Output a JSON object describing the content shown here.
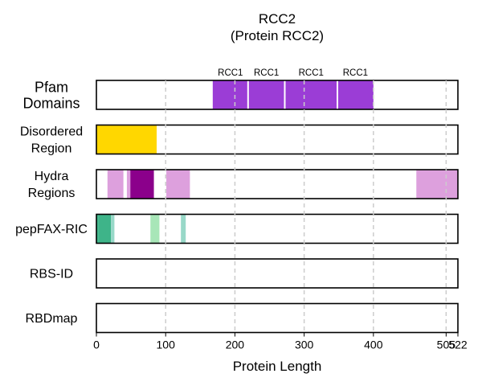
{
  "chart_data": {
    "type": "bar",
    "title": "RCC2",
    "subtitle": "(Protein RCC2)",
    "xlabel": "Protein Length",
    "xlim": [
      0,
      522
    ],
    "x_ticks": [
      0,
      100,
      200,
      300,
      400,
      505,
      522
    ],
    "dashed_lines": [
      100,
      200,
      300,
      400,
      505
    ],
    "tracks": [
      {
        "label_lines": [
          "Pfam",
          "Domains"
        ],
        "segments": [
          {
            "start": 168,
            "end": 219,
            "color": "#9b3dd6",
            "label": "RCC1"
          },
          {
            "start": 219,
            "end": 272,
            "color": "#9b3dd6",
            "label": "RCC1"
          },
          {
            "start": 272,
            "end": 348,
            "color": "#9b3dd6",
            "label": "RCC1"
          },
          {
            "start": 348,
            "end": 400,
            "color": "#9b3dd6",
            "label": "RCC1"
          }
        ]
      },
      {
        "label_lines": [
          "Disordered",
          "Region"
        ],
        "segments": [
          {
            "start": 0,
            "end": 87,
            "color": "#ffd700"
          }
        ]
      },
      {
        "label_lines": [
          "Hydra",
          "Regions"
        ],
        "segments": [
          {
            "start": 16,
            "end": 39,
            "color": "#dda0dd"
          },
          {
            "start": 44,
            "end": 49,
            "color": "#dda0dd"
          },
          {
            "start": 49,
            "end": 83,
            "color": "#8b008b"
          },
          {
            "start": 101,
            "end": 135,
            "color": "#dda0dd"
          },
          {
            "start": 462,
            "end": 522,
            "color": "#dda0dd"
          }
        ]
      },
      {
        "label_lines": [
          "pepFAX-RIC"
        ],
        "segments": [
          {
            "start": 0,
            "end": 3,
            "color": "#3eb489"
          },
          {
            "start": 3,
            "end": 21,
            "color": "#3eb489"
          },
          {
            "start": 21,
            "end": 26,
            "color": "#98d8c8"
          },
          {
            "start": 78,
            "end": 91,
            "color": "#a8e6b8"
          },
          {
            "start": 122,
            "end": 129,
            "color": "#98d8c8"
          }
        ]
      },
      {
        "label_lines": [
          "RBS-ID"
        ],
        "segments": []
      },
      {
        "label_lines": [
          "RBDmap"
        ],
        "segments": []
      }
    ],
    "grid": false
  }
}
